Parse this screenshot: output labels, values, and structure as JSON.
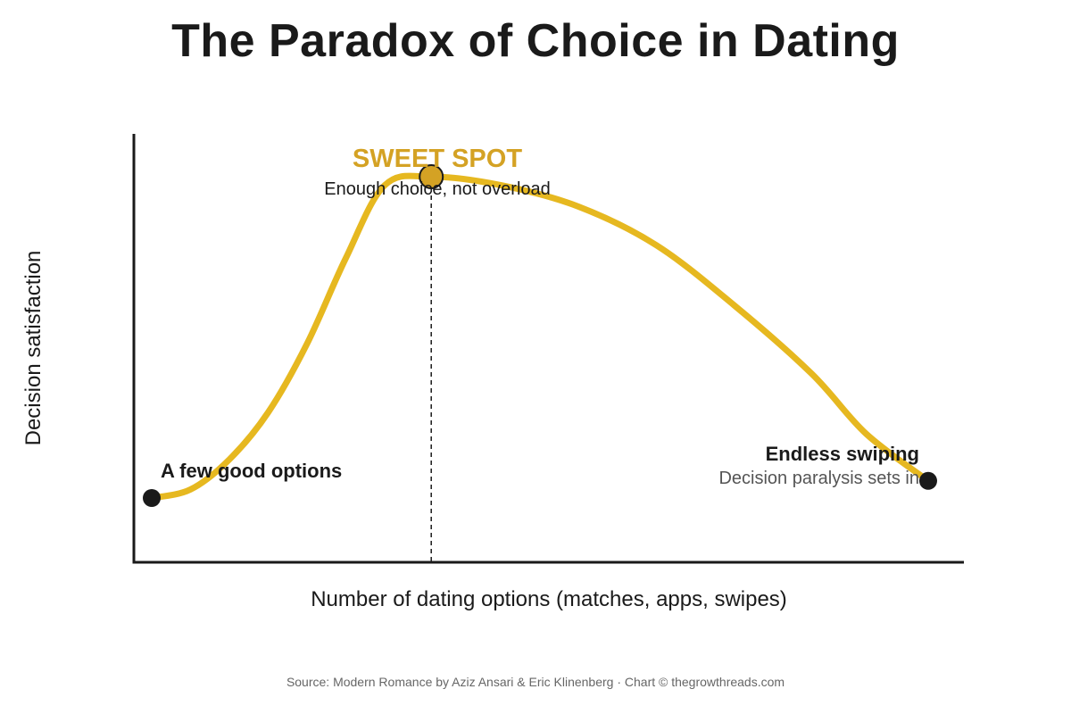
{
  "colors": {
    "curve": "#e6b820",
    "accent_text": "#d4a224",
    "marker_dark": "#1a1a1a",
    "axis": "#1a1a1a",
    "text_dark": "#1a1a1a",
    "text_muted": "#555555"
  },
  "chart_data": {
    "type": "line",
    "title": "The Paradox of Choice in Dating",
    "xlabel": "Number of dating options (matches, apps, swipes)",
    "ylabel": "Decision satisfaction",
    "x_ticks": "none",
    "y_ticks": "none",
    "grid": false,
    "series": [
      {
        "values": [
          {
            "x": 0,
            "y": 0.15
          },
          {
            "x": 0.05,
            "y": 0.17
          },
          {
            "x": 0.1,
            "y": 0.24
          },
          {
            "x": 0.15,
            "y": 0.35
          },
          {
            "x": 0.2,
            "y": 0.51
          },
          {
            "x": 0.25,
            "y": 0.71
          },
          {
            "x": 0.3,
            "y": 0.88
          },
          {
            "x": 0.36,
            "y": 0.9
          },
          {
            "x": 0.45,
            "y": 0.88
          },
          {
            "x": 0.55,
            "y": 0.83
          },
          {
            "x": 0.65,
            "y": 0.74
          },
          {
            "x": 0.75,
            "y": 0.6
          },
          {
            "x": 0.85,
            "y": 0.44
          },
          {
            "x": 0.92,
            "y": 0.3
          },
          {
            "x": 1.0,
            "y": 0.19
          }
        ]
      }
    ],
    "markers": [
      {
        "name": "start",
        "x": 0,
        "y": 0.15,
        "style": "dark"
      },
      {
        "name": "peak",
        "x": 0.36,
        "y": 0.9,
        "style": "accent"
      },
      {
        "name": "end",
        "x": 1.0,
        "y": 0.19,
        "style": "dark"
      }
    ],
    "reference_line": {
      "x": 0.36,
      "style": "dashed"
    },
    "annotations": {
      "start_label": "A few good options",
      "peak_title": "SWEET SPOT",
      "peak_subtitle": "Enough choice, not overload",
      "end_title": "Endless swiping",
      "end_subtitle": "Decision paralysis sets in"
    },
    "source": "Source: Modern Romance by Aziz Ansari & Eric Klinenberg · Chart © thegrowthreads.com"
  }
}
